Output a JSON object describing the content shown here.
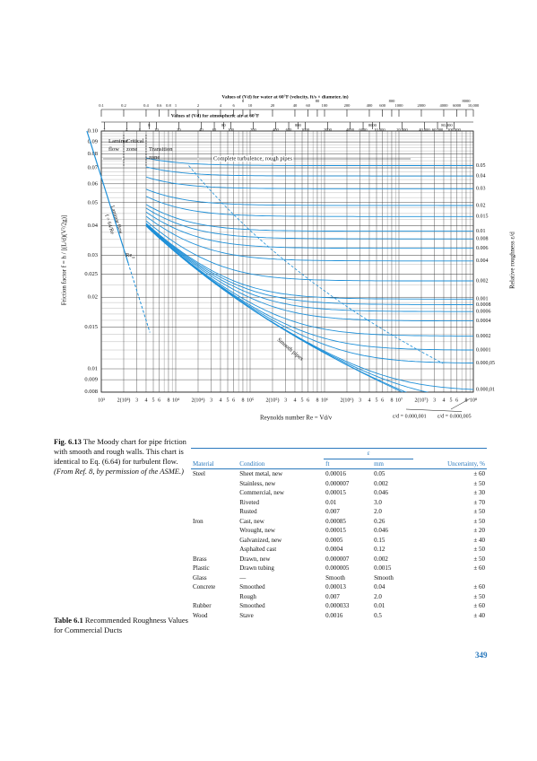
{
  "chart": {
    "top_axis_water": {
      "title": "Values of (Vd) for water at 60°F (velocity, ft/s × diameter, in)",
      "ticks": [
        0.1,
        0.2,
        0.4,
        0.6,
        0.8,
        1,
        2,
        4,
        6,
        8,
        10,
        20,
        40,
        60,
        80,
        100,
        200,
        400,
        600,
        800,
        1000,
        2000,
        4000,
        6000,
        8000,
        {
          "value": 10000,
          "label": "10,000"
        }
      ]
    },
    "top_axis_air": {
      "title": "Values of (Vd) for atmospheric air at 60°F",
      "ticks": [
        2,
        4,
        6,
        8,
        10,
        20,
        40,
        60,
        80,
        100,
        200,
        400,
        600,
        800,
        1000,
        2000,
        4000,
        6000,
        8000,
        {
          "value": 10000,
          "label": "10,000"
        },
        {
          "value": 20000,
          "label": "20,000"
        },
        {
          "value": 40000,
          "label": "40,000"
        },
        {
          "value": 60000,
          "label": "60,000"
        },
        {
          "value": 80000,
          "label": "80,000"
        },
        {
          "value": 100000,
          "label": "100,000"
        }
      ]
    },
    "y_label": "Friction factor f = h / [(L/d)(V²/2g)]",
    "yticks": [
      {
        "value": 0.1,
        "label": "0.10"
      },
      0.09,
      0.08,
      0.07,
      0.06,
      0.05,
      0.04,
      0.03,
      0.025,
      0.02,
      0.015,
      0.01,
      0.009,
      0.008
    ],
    "xticks": [
      {
        "value": 1000,
        "label": "10³"
      },
      {
        "value": 2000,
        "label": "2(10³)"
      },
      {
        "value": 3000,
        "label": "3"
      },
      {
        "value": 4000,
        "label": "4"
      },
      {
        "value": 5000,
        "label": "5"
      },
      {
        "value": 6000,
        "label": "6"
      },
      {
        "value": 8000,
        "label": "8"
      },
      {
        "value": 10000,
        "label": "10⁴"
      },
      {
        "value": 20000,
        "label": "2(10⁴)"
      },
      {
        "value": 30000,
        "label": "3"
      },
      {
        "value": 40000,
        "label": "4"
      },
      {
        "value": 50000,
        "label": "5"
      },
      {
        "value": 60000,
        "label": "6"
      },
      {
        "value": 80000,
        "label": "8"
      },
      {
        "value": 100000,
        "label": "10⁵"
      },
      {
        "value": 200000,
        "label": "2(10⁵)"
      },
      {
        "value": 300000,
        "label": "3"
      },
      {
        "value": 400000,
        "label": "4"
      },
      {
        "value": 500000,
        "label": "5"
      },
      {
        "value": 600000,
        "label": "6"
      },
      {
        "value": 800000,
        "label": "8"
      },
      {
        "value": 1000000,
        "label": "10⁶"
      },
      {
        "value": 2000000,
        "label": "2(10⁶)"
      },
      {
        "value": 3000000,
        "label": "3"
      },
      {
        "value": 4000000,
        "label": "4"
      },
      {
        "value": 5000000,
        "label": "5"
      },
      {
        "value": 6000000,
        "label": "6"
      },
      {
        "value": 8000000,
        "label": "8"
      },
      {
        "value": 10000000,
        "label": "10⁷"
      },
      {
        "value": 20000000,
        "label": "2(10⁷)"
      },
      {
        "value": 30000000,
        "label": "3"
      },
      {
        "value": 40000000,
        "label": "4"
      },
      {
        "value": 50000000,
        "label": "5"
      },
      {
        "value": 60000000,
        "label": "6"
      },
      {
        "value": 80000000,
        "label": "8"
      },
      {
        "value": 100000000,
        "label": "10⁸"
      }
    ],
    "x_label": "Reynolds number Re = Vd/ν",
    "right_label": "Relative roughness ε/d",
    "roughness": [
      0.05,
      0.04,
      0.03,
      0.02,
      0.015,
      0.01,
      0.008,
      0.006,
      0.004,
      0.002,
      0.001,
      0.0008,
      0.0006,
      0.0004,
      0.0002,
      0.0001,
      {
        "value": 5e-05,
        "label": "0.000,05"
      },
      {
        "value": 1e-05,
        "label": "0.000,01"
      }
    ],
    "bottom_curves": [
      {
        "value": 1e-06,
        "label": "ε/d = 0.000,001"
      },
      {
        "value": 5e-06,
        "label": "ε/d = 0.000,005"
      }
    ],
    "annotations": {
      "laminar_zone": [
        "Laminar",
        "flow"
      ],
      "critical_zone": [
        "Critical",
        "zone"
      ],
      "transition_zone": [
        "Transition",
        "zone"
      ],
      "complete_turbulence": "Complete turbulence, rough pipes",
      "laminar_line": "Laminar flow",
      "laminar_formula": "f = 64/Re",
      "re_cr": [
        "Re",
        "cr"
      ],
      "smooth": "Smooth pipes"
    }
  },
  "caption": {
    "label": "Fig. 6.13",
    "text": "The Moody chart for pipe friction with smooth and rough walls. This chart is identical to Eq. (6.64) for turbulent flow.",
    "source": "(From Ref. 8, by permission of the ASME.)"
  },
  "table": {
    "label": "Table 6.1",
    "title": "Recommended Roughness Values for Commercial Ducts",
    "group_header": "ε",
    "headers": [
      "Material",
      "Condition",
      "ft",
      "mm",
      "Uncertainty, %"
    ],
    "rows": [
      [
        "Steel",
        "Sheet metal, new",
        "0.00016",
        "0.05",
        "± 60"
      ],
      [
        null,
        "Stainless, new",
        "0.000007",
        "0.002",
        "± 50"
      ],
      [
        null,
        "Commercial, new",
        "0.00015",
        "0.046",
        "± 30"
      ],
      [
        null,
        "Riveted",
        "0.01",
        "3.0",
        "± 70"
      ],
      [
        null,
        "Rusted",
        "0.007",
        "2.0",
        "± 50"
      ],
      [
        "Iron",
        "Cast, new",
        "0.00085",
        "0.26",
        "± 50"
      ],
      [
        null,
        "Wrought, new",
        "0.00015",
        "0.046",
        "± 20"
      ],
      [
        null,
        "Galvanized, new",
        "0.0005",
        "0.15",
        "± 40"
      ],
      [
        null,
        "Asphalted cast",
        "0.0004",
        "0.12",
        "± 50"
      ],
      [
        "Brass",
        "Drawn, new",
        "0.000007",
        "0.002",
        "± 50"
      ],
      [
        "Plastic",
        "Drawn tubing",
        "0.000005",
        "0.0015",
        "± 60"
      ],
      [
        "Glass",
        "—",
        "Smooth",
        "Smooth",
        null
      ],
      [
        "Concrete",
        "Smoothed",
        "0.00013",
        "0.04",
        "± 60"
      ],
      [
        null,
        "Rough",
        "0.007",
        "2.0",
        "± 50"
      ],
      [
        "Rubber",
        "Smoothed",
        "0.000033",
        "0.01",
        "± 60"
      ],
      [
        "Wood",
        "Stave",
        "0.0016",
        "0.5",
        "± 40"
      ]
    ]
  },
  "page_number": "349"
}
